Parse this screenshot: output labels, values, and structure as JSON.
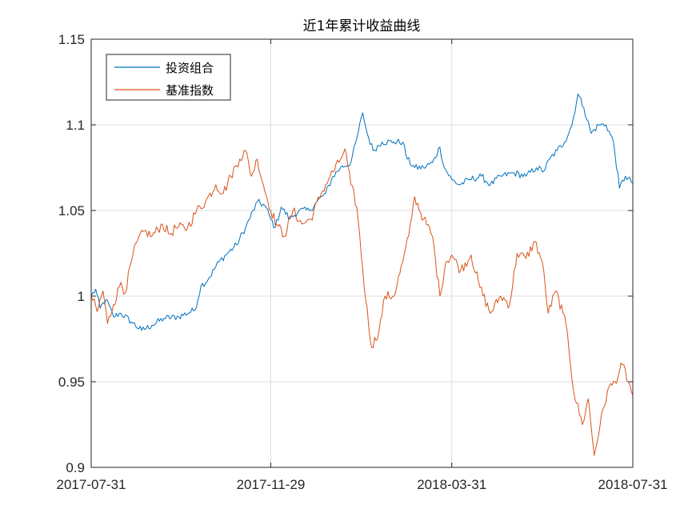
{
  "chart_data": {
    "type": "line",
    "title": "近1年累计收益曲线",
    "xlabel": "",
    "ylabel": "",
    "x_range": [
      "2017-07-31",
      "2018-07-31"
    ],
    "ylim": [
      0.9,
      1.15
    ],
    "x_ticks": [
      "2017-07-31",
      "2017-11-29",
      "2018-03-31",
      "2018-07-31"
    ],
    "y_ticks": [
      0.9,
      0.95,
      1,
      1.05,
      1.1,
      1.15
    ],
    "y_tick_labels": [
      "0.9",
      "0.95",
      "1",
      "1.05",
      "1.1",
      "1.15"
    ],
    "grid": true,
    "legend_position": "top-left",
    "series": [
      {
        "name": "投资组合",
        "color": "#0072BD",
        "points": [
          [
            "2017-07-31",
            1.0
          ],
          [
            "2017-08-03",
            1.004
          ],
          [
            "2017-08-06",
            0.993
          ],
          [
            "2017-08-10",
            0.998
          ],
          [
            "2017-08-15",
            0.988
          ],
          [
            "2017-08-20",
            0.99
          ],
          [
            "2017-08-27",
            0.985
          ],
          [
            "2017-09-03",
            0.98
          ],
          [
            "2017-09-10",
            0.983
          ],
          [
            "2017-09-18",
            0.987
          ],
          [
            "2017-09-28",
            0.988
          ],
          [
            "2017-10-09",
            0.992
          ],
          [
            "2017-10-13",
            1.006
          ],
          [
            "2017-10-18",
            1.01
          ],
          [
            "2017-10-25",
            1.02
          ],
          [
            "2017-11-01",
            1.026
          ],
          [
            "2017-11-06",
            1.03
          ],
          [
            "2017-11-12",
            1.04
          ],
          [
            "2017-11-20",
            1.055
          ],
          [
            "2017-11-25",
            1.053
          ],
          [
            "2017-11-29",
            1.045
          ],
          [
            "2017-12-02",
            1.04
          ],
          [
            "2017-12-06",
            1.052
          ],
          [
            "2017-12-12",
            1.045
          ],
          [
            "2017-12-18",
            1.05
          ],
          [
            "2017-12-25",
            1.05
          ],
          [
            "2017-12-30",
            1.055
          ],
          [
            "2018-01-05",
            1.06
          ],
          [
            "2018-01-10",
            1.07
          ],
          [
            "2018-01-15",
            1.075
          ],
          [
            "2018-01-22",
            1.078
          ],
          [
            "2018-01-26",
            1.092
          ],
          [
            "2018-01-30",
            1.107
          ],
          [
            "2018-02-02",
            1.095
          ],
          [
            "2018-02-06",
            1.085
          ],
          [
            "2018-02-12",
            1.09
          ],
          [
            "2018-02-20",
            1.09
          ],
          [
            "2018-02-26",
            1.09
          ],
          [
            "2018-03-01",
            1.08
          ],
          [
            "2018-03-06",
            1.075
          ],
          [
            "2018-03-12",
            1.075
          ],
          [
            "2018-03-18",
            1.078
          ],
          [
            "2018-03-23",
            1.087
          ],
          [
            "2018-03-26",
            1.075
          ],
          [
            "2018-03-31",
            1.068
          ],
          [
            "2018-04-05",
            1.065
          ],
          [
            "2018-04-12",
            1.068
          ],
          [
            "2018-04-20",
            1.07
          ],
          [
            "2018-04-26",
            1.065
          ],
          [
            "2018-05-03",
            1.07
          ],
          [
            "2018-05-12",
            1.072
          ],
          [
            "2018-05-20",
            1.07
          ],
          [
            "2018-05-27",
            1.075
          ],
          [
            "2018-06-01",
            1.073
          ],
          [
            "2018-06-05",
            1.08
          ],
          [
            "2018-06-10",
            1.085
          ],
          [
            "2018-06-15",
            1.09
          ],
          [
            "2018-06-20",
            1.1
          ],
          [
            "2018-06-24",
            1.118
          ],
          [
            "2018-06-28",
            1.11
          ],
          [
            "2018-07-03",
            1.095
          ],
          [
            "2018-07-08",
            1.1
          ],
          [
            "2018-07-13",
            1.1
          ],
          [
            "2018-07-18",
            1.09
          ],
          [
            "2018-07-22",
            1.063
          ],
          [
            "2018-07-26",
            1.07
          ],
          [
            "2018-07-31",
            1.066
          ]
        ]
      },
      {
        "name": "基准指数",
        "color": "#D95319",
        "points": [
          [
            "2017-07-31",
            1.0
          ],
          [
            "2017-08-04",
            0.991
          ],
          [
            "2017-08-08",
            1.003
          ],
          [
            "2017-08-11",
            0.984
          ],
          [
            "2017-08-15",
            0.995
          ],
          [
            "2017-08-20",
            1.008
          ],
          [
            "2017-08-23",
            1.002
          ],
          [
            "2017-08-27",
            1.02
          ],
          [
            "2017-08-31",
            1.032
          ],
          [
            "2017-09-05",
            1.038
          ],
          [
            "2017-09-10",
            1.035
          ],
          [
            "2017-09-17",
            1.042
          ],
          [
            "2017-09-22",
            1.036
          ],
          [
            "2017-09-26",
            1.04
          ],
          [
            "2017-10-04",
            1.04
          ],
          [
            "2017-10-10",
            1.05
          ],
          [
            "2017-10-16",
            1.055
          ],
          [
            "2017-10-23",
            1.065
          ],
          [
            "2017-10-28",
            1.06
          ],
          [
            "2017-11-02",
            1.07
          ],
          [
            "2017-11-08",
            1.08
          ],
          [
            "2017-11-12",
            1.085
          ],
          [
            "2017-11-16",
            1.07
          ],
          [
            "2017-11-20",
            1.08
          ],
          [
            "2017-11-24",
            1.065
          ],
          [
            "2017-11-29",
            1.05
          ],
          [
            "2017-12-03",
            1.042
          ],
          [
            "2017-12-08",
            1.035
          ],
          [
            "2017-12-14",
            1.05
          ],
          [
            "2017-12-20",
            1.042
          ],
          [
            "2017-12-26",
            1.045
          ],
          [
            "2018-01-02",
            1.06
          ],
          [
            "2018-01-08",
            1.07
          ],
          [
            "2018-01-14",
            1.078
          ],
          [
            "2018-01-18",
            1.086
          ],
          [
            "2018-01-22",
            1.065
          ],
          [
            "2018-01-26",
            1.052
          ],
          [
            "2018-02-01",
            0.998
          ],
          [
            "2018-02-05",
            0.97
          ],
          [
            "2018-02-10",
            0.98
          ],
          [
            "2018-02-14",
            1.0
          ],
          [
            "2018-02-20",
            1.0
          ],
          [
            "2018-02-26",
            1.02
          ],
          [
            "2018-03-02",
            1.035
          ],
          [
            "2018-03-06",
            1.058
          ],
          [
            "2018-03-12",
            1.045
          ],
          [
            "2018-03-18",
            1.035
          ],
          [
            "2018-03-23",
            1.0
          ],
          [
            "2018-03-27",
            1.02
          ],
          [
            "2018-03-31",
            1.024
          ],
          [
            "2018-04-06",
            1.015
          ],
          [
            "2018-04-13",
            1.024
          ],
          [
            "2018-04-19",
            1.005
          ],
          [
            "2018-04-26",
            0.99
          ],
          [
            "2018-05-03",
            1.0
          ],
          [
            "2018-05-09",
            0.995
          ],
          [
            "2018-05-14",
            1.025
          ],
          [
            "2018-05-20",
            1.022
          ],
          [
            "2018-05-26",
            1.032
          ],
          [
            "2018-05-31",
            1.02
          ],
          [
            "2018-06-04",
            0.99
          ],
          [
            "2018-06-09",
            1.003
          ],
          [
            "2018-06-14",
            0.99
          ],
          [
            "2018-06-17",
            0.978
          ],
          [
            "2018-06-21",
            0.945
          ],
          [
            "2018-06-27",
            0.925
          ],
          [
            "2018-07-01",
            0.94
          ],
          [
            "2018-07-05",
            0.907
          ],
          [
            "2018-07-09",
            0.925
          ],
          [
            "2018-07-14",
            0.945
          ],
          [
            "2018-07-19",
            0.95
          ],
          [
            "2018-07-24",
            0.96
          ],
          [
            "2018-07-28",
            0.95
          ],
          [
            "2018-07-31",
            0.942
          ]
        ]
      }
    ]
  }
}
